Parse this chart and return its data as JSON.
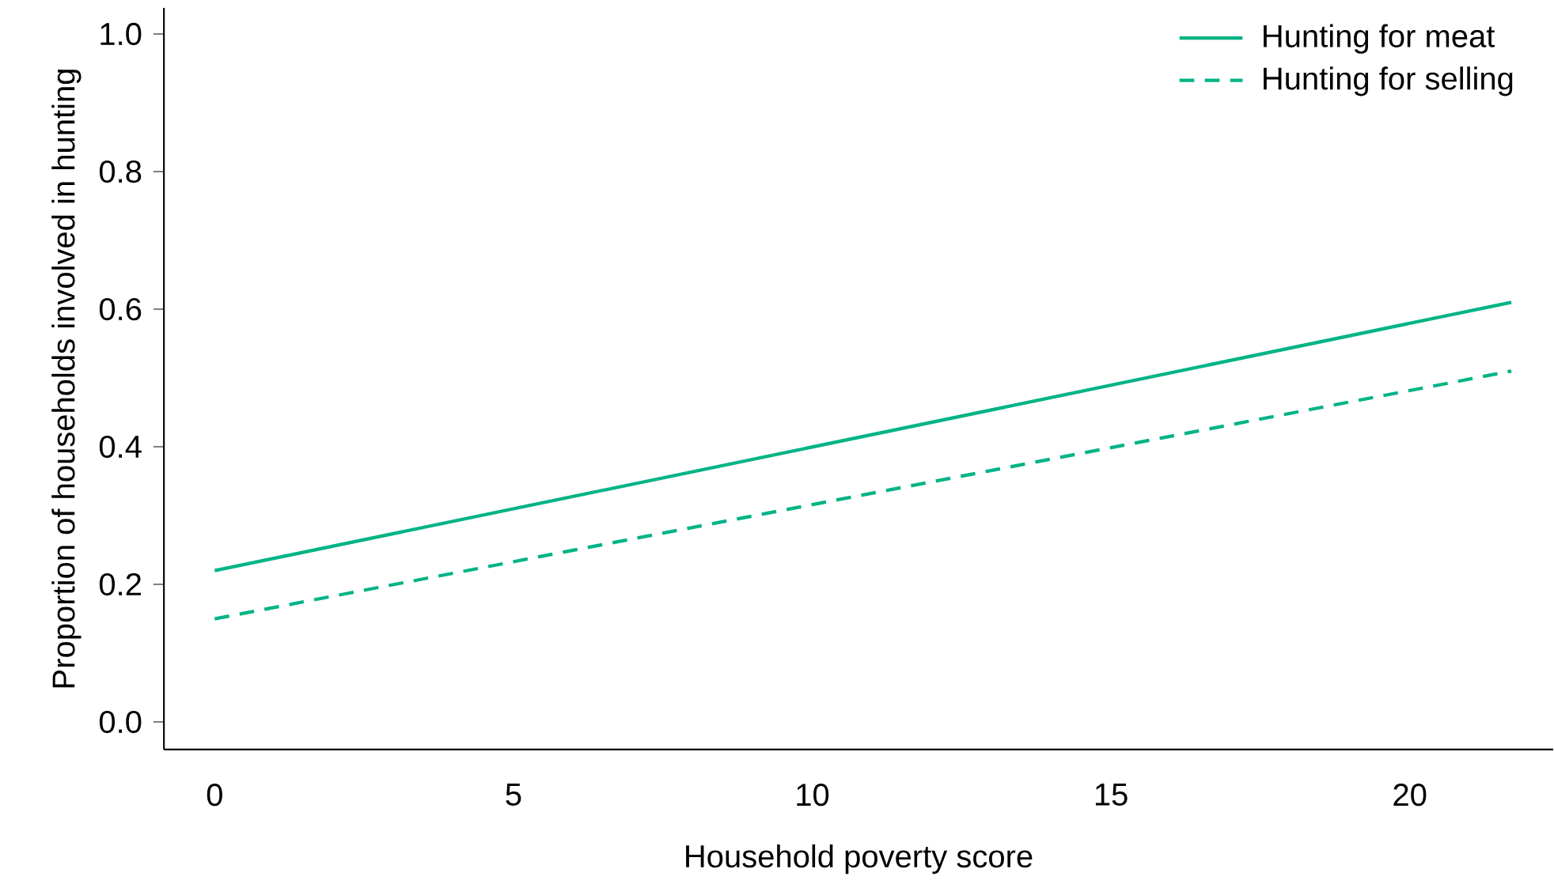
{
  "chart_data": {
    "type": "line",
    "xlabel": "Household poverty score",
    "ylabel": "Proportion of households involved in hunting",
    "x": [
      0,
      21.7
    ],
    "series": [
      {
        "name": "Hunting for meat",
        "color": "#00b386",
        "line_style": "solid",
        "values": [
          0.22,
          0.61
        ]
      },
      {
        "name": "Hunting for selling",
        "color": "#00b386",
        "line_style": "dashed",
        "values": [
          0.15,
          0.51
        ]
      }
    ],
    "xlim": [
      -0.85,
      22.4
    ],
    "ylim": [
      -0.04,
      1.038
    ],
    "xticks": [
      0,
      5,
      10,
      15,
      20
    ],
    "yticks": [
      {
        "value": 0,
        "label": "0.0"
      },
      {
        "value": 0.2,
        "label": "0.2"
      },
      {
        "value": 0.4,
        "label": "0.4"
      },
      {
        "value": 0.6,
        "label": "0.6"
      },
      {
        "value": 0.8,
        "label": "0.8"
      },
      {
        "value": 1,
        "label": "1.0"
      }
    ],
    "grid": false,
    "legend": "top right",
    "marker": "none"
  }
}
